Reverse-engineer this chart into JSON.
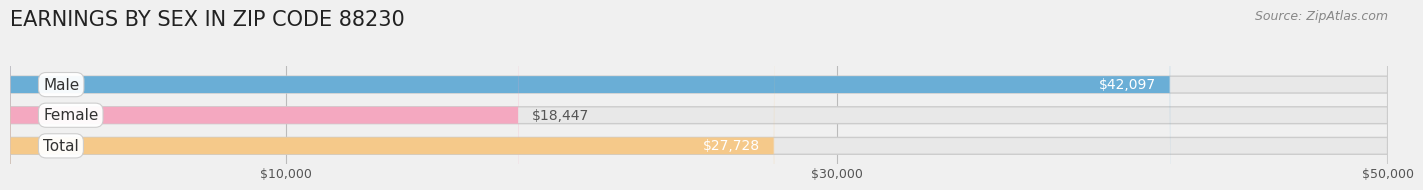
{
  "title": "EARNINGS BY SEX IN ZIP CODE 88230",
  "source": "Source: ZipAtlas.com",
  "categories": [
    "Male",
    "Female",
    "Total"
  ],
  "values": [
    42097,
    18447,
    27728
  ],
  "bar_colors": [
    "#6aaed6",
    "#f4a8c0",
    "#f5c98a"
  ],
  "label_colors": [
    "#6aaed6",
    "#f4a8c0",
    "#f5c98a"
  ],
  "background_color": "#f0f0f0",
  "bar_bg_color": "#e0e0e0",
  "xlim": [
    0,
    50000
  ],
  "xticks": [
    10000,
    30000,
    50000
  ],
  "xtick_labels": [
    "$10,000",
    "$30,000",
    "$50,000"
  ],
  "title_fontsize": 15,
  "source_fontsize": 9,
  "bar_height": 0.55,
  "bar_label_fontsize": 10,
  "cat_label_fontsize": 11
}
